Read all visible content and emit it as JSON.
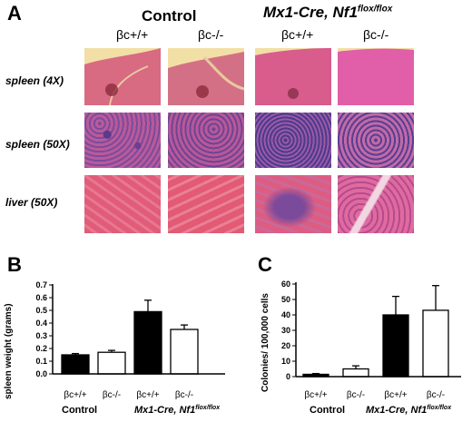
{
  "panel_a": {
    "letter": "A",
    "group_control": "Control",
    "group_mutant": {
      "main": "Mx1-Cre, Nf1",
      "sup": "flox/flox"
    },
    "genotypes": [
      "βc+/+",
      "βc-/-",
      "βc+/+",
      "βc-/-"
    ],
    "rows": [
      "spleen (4X)",
      "spleen (50X)",
      "liver (50X)"
    ]
  },
  "chart_data": [
    {
      "type": "bar",
      "panel_letter": "B",
      "ylabel": "spleen weight (grams)",
      "ylim": [
        0,
        0.7
      ],
      "yticks": [
        "0.0",
        "0.1",
        "0.2",
        "0.3",
        "0.4",
        "0.5",
        "0.6",
        "0.7"
      ],
      "categories": [
        "βc+/+",
        "βc-/-",
        "βc+/+",
        "βc-/-"
      ],
      "values": [
        0.15,
        0.17,
        0.49,
        0.35
      ],
      "errors": [
        0.01,
        0.015,
        0.09,
        0.035
      ],
      "fills": [
        "#000000",
        "#ffffff",
        "#000000",
        "#ffffff"
      ],
      "groups": [
        "Control",
        "Mx1-Cre, Nf1"
      ],
      "group_sup": "flox/flox"
    },
    {
      "type": "bar",
      "panel_letter": "C",
      "ylabel": "Colonies/ 100,000 cells",
      "ylim": [
        0,
        60
      ],
      "yticks": [
        "0",
        "10",
        "20",
        "30",
        "40",
        "50",
        "60"
      ],
      "categories": [
        "βc+/+",
        "βc-/-",
        "βc+/+",
        "βc-/-"
      ],
      "values": [
        1.5,
        5,
        40,
        43
      ],
      "errors": [
        0.5,
        2,
        12,
        16
      ],
      "fills": [
        "#000000",
        "#ffffff",
        "#000000",
        "#ffffff"
      ],
      "groups": [
        "Control",
        "Mx1-Cre, Nf1"
      ],
      "group_sup": "flox/flox"
    }
  ]
}
